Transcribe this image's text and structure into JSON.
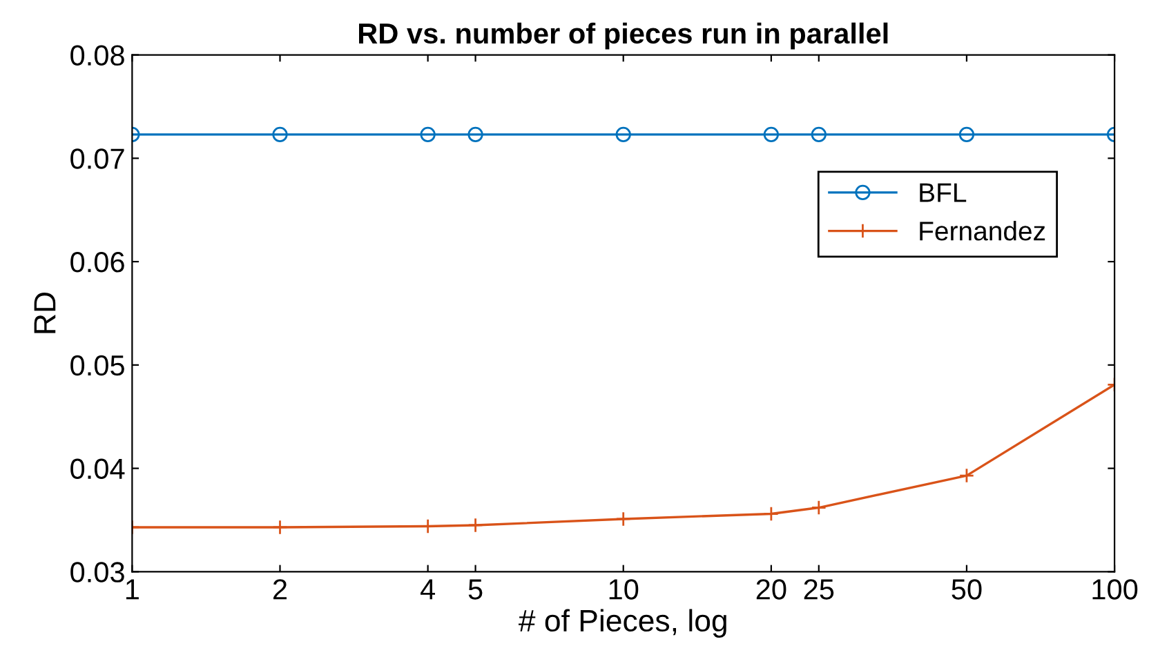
{
  "chart_data": {
    "type": "line",
    "title": "RD vs. number of pieces run in parallel",
    "xlabel": "# of Pieces, log",
    "ylabel": "RD",
    "x": [
      1,
      2,
      4,
      5,
      10,
      20,
      25,
      50,
      100
    ],
    "series": [
      {
        "name": "BFL",
        "color": "#0072bd",
        "marker": "circle",
        "values": [
          0.0723,
          0.0723,
          0.0723,
          0.0723,
          0.0723,
          0.0723,
          0.0723,
          0.0723,
          0.0723
        ]
      },
      {
        "name": "Fernandez",
        "color": "#d95319",
        "marker": "cross",
        "values": [
          0.0343,
          0.0343,
          0.0344,
          0.0345,
          0.0351,
          0.0356,
          0.0362,
          0.0393,
          0.0481
        ]
      }
    ],
    "log": "x",
    "xlim": [
      1,
      100
    ],
    "xticks": [
      1,
      2,
      4,
      5,
      10,
      20,
      25,
      50,
      100
    ],
    "ylim": [
      0.03,
      0.08
    ],
    "yticks": [
      0.03,
      0.04,
      0.05,
      0.06,
      0.07,
      0.08
    ],
    "grid": false,
    "legend": "top right"
  }
}
